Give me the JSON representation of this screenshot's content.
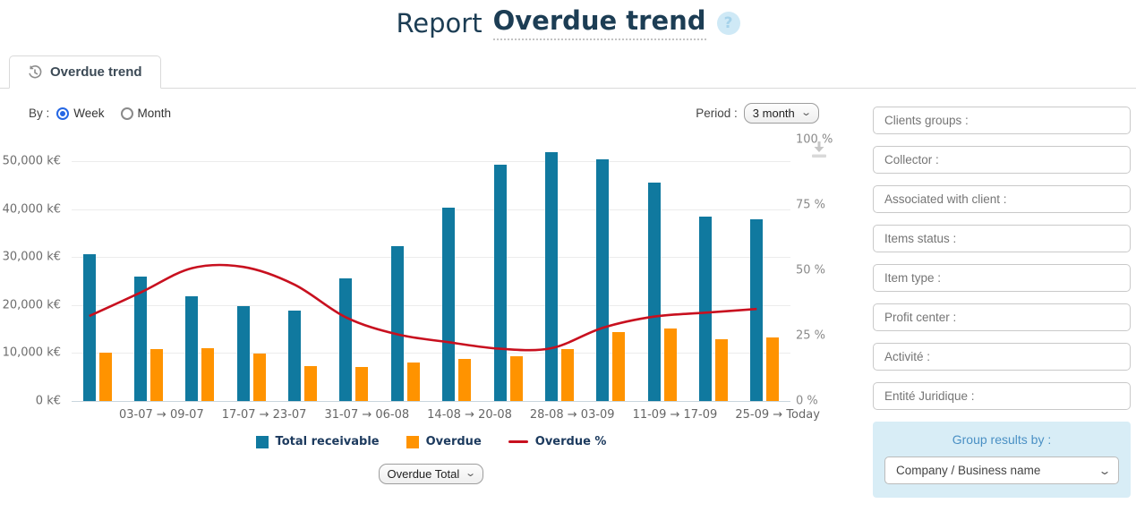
{
  "header": {
    "title_prefix": "Report",
    "title_emphasis": "Overdue trend",
    "help": "?"
  },
  "tab": {
    "label": "Overdue trend",
    "icon": "history-icon"
  },
  "controls": {
    "by_label": "By :",
    "radios": [
      {
        "label": "Week",
        "selected": true
      },
      {
        "label": "Month",
        "selected": false
      }
    ],
    "period_label": "Period :",
    "period_value": "3 month"
  },
  "chart_data": {
    "type": "bar+line",
    "title": "",
    "x_tick_labels": [
      "03-07 → 09-07",
      "17-07 → 23-07",
      "31-07 → 06-08",
      "14-08 → 20-08",
      "28-08 → 03-09",
      "11-09 → 17-09",
      "25-09 → Today"
    ],
    "left_axis": {
      "plot_max": 54500,
      "ticks": [
        {
          "value": 0,
          "label": "0 k€"
        },
        {
          "value": 10000,
          "label": "10,000 k€"
        },
        {
          "value": 20000,
          "label": "20,000 k€"
        },
        {
          "value": 30000,
          "label": "30,000 k€"
        },
        {
          "value": 40000,
          "label": "40,000 k€"
        },
        {
          "value": 50000,
          "label": "50,000 k€"
        }
      ]
    },
    "right_axis": {
      "max": 100,
      "ticks": [
        {
          "value": 0,
          "label": "0 %"
        },
        {
          "value": 25,
          "label": "25 %"
        },
        {
          "value": 50,
          "label": "50 %"
        },
        {
          "value": 75,
          "label": "75 %"
        },
        {
          "value": 100,
          "label": "100 %"
        }
      ]
    },
    "series": [
      {
        "name": "Total receivable",
        "type": "bar",
        "color": "#10799f",
        "values": [
          30700,
          26000,
          21800,
          19800,
          18900,
          25600,
          32200,
          40300,
          49200,
          51900,
          50400,
          45500,
          38400,
          37900
        ]
      },
      {
        "name": "Overdue",
        "type": "bar",
        "color": "#ff9300",
        "values": [
          10000,
          10800,
          11100,
          9900,
          7300,
          7100,
          8000,
          8700,
          9400,
          10800,
          14300,
          15100,
          12800,
          13300
        ]
      },
      {
        "name": "Overdue %",
        "type": "line",
        "color": "#c8101f",
        "axis": "right",
        "values": [
          32.5,
          41.5,
          50.8,
          51.3,
          44.5,
          32,
          25.5,
          22.5,
          20,
          20.2,
          28,
          32.3,
          33.8,
          35.2
        ]
      }
    ],
    "legend_position": "bottom",
    "grid": "horizontal"
  },
  "chart_footer": {
    "series_select_value": "Overdue Total"
  },
  "filters": {
    "items": [
      {
        "label": "Clients groups :"
      },
      {
        "label": "Collector :"
      },
      {
        "label": "Associated with client :"
      },
      {
        "label": "Items status :"
      },
      {
        "label": "Item type :"
      },
      {
        "label": "Profit center :"
      },
      {
        "label": "Activité :"
      },
      {
        "label": "Entité Juridique :"
      }
    ]
  },
  "group_by": {
    "title": "Group results by :",
    "value": "Company / Business name"
  },
  "icons": {
    "help": "question-mark",
    "tab": "history-clock",
    "download": "download-arrow"
  }
}
